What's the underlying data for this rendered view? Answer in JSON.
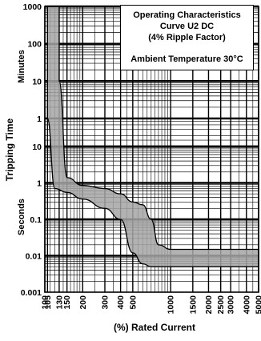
{
  "chart_data": {
    "type": "area",
    "title_lines": [
      "Operating Characteristics",
      "Curve U2 DC",
      "(4% Ripple Factor)"
    ],
    "subtitle": "Ambient Temperature 30°C",
    "xlabel": "(%) Rated Current",
    "ylabel": "Tripping Time",
    "ylabel_minutes": "Minutes",
    "ylabel_seconds": "Seconds",
    "x_scale": "log",
    "xlim": [
      100,
      5000
    ],
    "x_ticks": [
      "100",
      "105",
      "130",
      "150",
      "200",
      "300",
      "400",
      "500",
      "1000",
      "1500",
      "2000",
      "2500",
      "3000",
      "4000",
      "5000"
    ],
    "minutes_ticks": [
      "1000",
      "100",
      "10",
      "1"
    ],
    "seconds_ticks": [
      "10",
      "1",
      "0.1",
      "0.01",
      "0.001"
    ],
    "grid": true,
    "series": [
      {
        "band": "max",
        "points": [
          [
            130,
            1000
          ],
          [
            130,
            10
          ],
          [
            150,
            1.4
          ],
          [
            200,
            0.85
          ],
          [
            300,
            0.7
          ],
          [
            400,
            0.5
          ],
          [
            500,
            0.3
          ],
          [
            600,
            0.25
          ],
          [
            700,
            0.1
          ],
          [
            800,
            0.02
          ],
          [
            1000,
            0.015
          ],
          [
            2000,
            0.015
          ],
          [
            5000,
            0.015
          ]
        ]
      },
      {
        "band": "min",
        "points": [
          [
            105,
            1000
          ],
          [
            105,
            1
          ],
          [
            120,
            0.7
          ],
          [
            150,
            0.55
          ],
          [
            200,
            0.36
          ],
          [
            300,
            0.2
          ],
          [
            400,
            0.1
          ],
          [
            500,
            0.012
          ],
          [
            600,
            0.006
          ],
          [
            700,
            0.005
          ],
          [
            1000,
            0.005
          ],
          [
            2000,
            0.005
          ],
          [
            5000,
            0.005
          ]
        ]
      }
    ],
    "band_color": "#a5a5a5"
  }
}
